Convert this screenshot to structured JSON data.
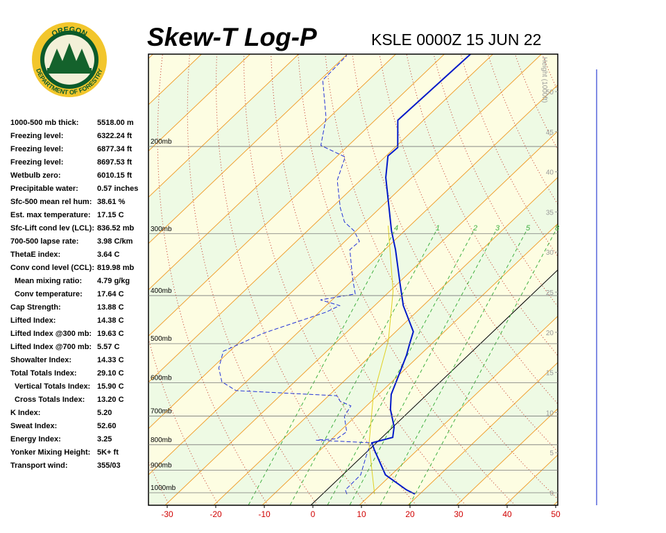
{
  "header": {
    "title": "Skew-T Log-P",
    "station": "KSLE 0000Z 15 JUN 22"
  },
  "logo": {
    "top": "OREGON",
    "bottom": "DEPARTMENT OF FORESTRY"
  },
  "indices": [
    {
      "label": "1000-500 mb thick:",
      "value": "5518.00 m"
    },
    {
      "label": "Freezing level:",
      "value": "6322.24 ft"
    },
    {
      "label": "Freezing level:",
      "value": "6877.34 ft"
    },
    {
      "label": "Freezing level:",
      "value": "8697.53 ft"
    },
    {
      "label": "Wetbulb zero:",
      "value": "6010.15 ft"
    },
    {
      "label": "Precipitable water:",
      "value": "0.57 inches"
    },
    {
      "label": "Sfc-500 mean rel hum:",
      "value": "38.61 %"
    },
    {
      "label": "Est. max temperature:",
      "value": "17.15 C"
    },
    {
      "label": "Sfc-Lift cond lev (LCL):",
      "value": "836.52 mb"
    },
    {
      "label": "700-500 lapse rate:",
      "value": "3.98 C/km"
    },
    {
      "label": "ThetaE index:",
      "value": "3.64 C"
    },
    {
      "label": "Conv cond level (CCL):",
      "value": "819.98 mb"
    },
    {
      "label": "Mean mixing ratio:",
      "value": "4.79 g/kg"
    },
    {
      "label": "Conv temperature:",
      "value": "17.64 C"
    },
    {
      "label": "Cap Strength:",
      "value": "13.88 C"
    },
    {
      "label": "Lifted Index:",
      "value": "14.38 C"
    },
    {
      "label": "Lifted Index @300 mb:",
      "value": "19.63 C"
    },
    {
      "label": "Lifted Index @700 mb:",
      "value": "5.57 C"
    },
    {
      "label": "Showalter Index:",
      "value": "14.33 C"
    },
    {
      "label": "Total Totals Index:",
      "value": "29.10 C"
    },
    {
      "label": "Vertical Totals Index:",
      "value": "15.90 C"
    },
    {
      "label": "Cross Totals Index:",
      "value": "13.20 C"
    },
    {
      "label": "K Index:",
      "value": "5.20"
    },
    {
      "label": "Sweat Index:",
      "value": "52.60"
    },
    {
      "label": "Energy Index:",
      "value": "3.25"
    },
    {
      "label": "Yonker Mixing Height:",
      "value": "5K+ ft"
    },
    {
      "label": "Transport wind:",
      "value": "355/03"
    }
  ],
  "chart": {
    "pressure_levels": [
      {
        "value": 200,
        "label": "200mb"
      },
      {
        "value": 300,
        "label": "300mb"
      },
      {
        "value": 400,
        "label": "400mb"
      },
      {
        "value": 500,
        "label": "500mb"
      },
      {
        "value": 600,
        "label": "600mb"
      },
      {
        "value": 700,
        "label": "700mb"
      },
      {
        "value": 800,
        "label": "800mb"
      },
      {
        "value": 900,
        "label": "900mb"
      },
      {
        "value": 1000,
        "label": "1000mb"
      }
    ],
    "temperature_ticks": [
      -30,
      -20,
      -10,
      0,
      10,
      20,
      30,
      40,
      50
    ],
    "height_axis": {
      "label": "Height (1000ft)",
      "lim": [
        0,
        50
      ],
      "ticks": [
        0,
        5,
        10,
        15,
        20,
        25,
        30,
        35,
        40,
        45,
        50
      ]
    },
    "mixing_ratio_labels": [
      "4",
      "1",
      "2",
      "3",
      "5",
      "8"
    ],
    "temperature_profile": {
      "color": "#0018c8",
      "pressure": [
        1006,
        987,
        920,
        819,
        793,
        773,
        736,
        679,
        633,
        593,
        528,
        501,
        473,
        419,
        377,
        323,
        296,
        231,
        209,
        201,
        177,
        130
      ],
      "temperature": [
        19.0,
        16.4,
        8.8,
        1.1,
        -0.9,
        2.2,
        0.2,
        -4.3,
        -7.4,
        -9.3,
        -12.7,
        -14.5,
        -16.4,
        -24.1,
        -29.7,
        -37.8,
        -42.7,
        -55.4,
        -59.6,
        -59.4,
        -65.3,
        -64.6
      ]
    },
    "dewpoint_profile": {
      "color": "#2030d8",
      "pressure": [
        1006,
        987,
        920,
        824,
        793,
        783,
        778,
        753,
        701,
        668,
        653,
        637,
        622,
        597,
        560,
        518,
        476,
        432,
        419,
        408,
        397,
        368,
        323,
        311,
        296,
        284,
        266,
        234,
        210,
        199,
        175,
        147,
        131
      ],
      "temperature": [
        5.0,
        3.8,
        3.7,
        0.0,
        -0.9,
        -13.0,
        -9.0,
        -8.5,
        -12.3,
        -13.2,
        -16.5,
        -18.3,
        -40.2,
        -45.0,
        -48.6,
        -51.3,
        -46.9,
        -38.6,
        -37.2,
        -42.4,
        -36.5,
        -40.6,
        -47.2,
        -47.0,
        -50.4,
        -54.3,
        -58.2,
        -64.8,
        -68.2,
        -75.7,
        -80.6,
        -89.4,
        -89.8
      ]
    },
    "parcel_profile": {
      "color": "#e0d020",
      "pressure": [
        1006,
        798,
        637,
        492,
        392,
        289
      ],
      "temperature": [
        10.7,
        -1.2,
        -10.8,
        -19.7,
        -29.3,
        -44.5
      ]
    }
  }
}
